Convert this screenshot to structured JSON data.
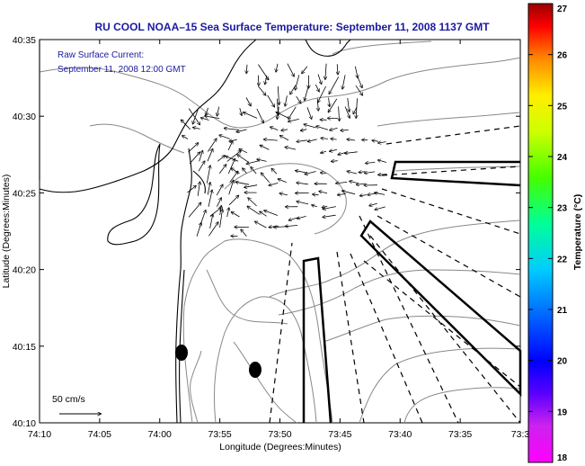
{
  "title": "RU COOL  NOAA–15  Sea Surface Temperature:  September 11, 2008 1137 GMT",
  "annotation": {
    "line1": "Raw Surface Current:",
    "line2": "September 11, 2008 12:00 GMT"
  },
  "scale_label": "50 cm/s",
  "axes": {
    "xlabel": "Longitude (Degrees:Minutes)",
    "ylabel": "Latitude (Degrees:Minutes)",
    "xticks": [
      "74:10",
      "74:05",
      "74:00",
      "73:55",
      "73:50",
      "73:45",
      "73:40",
      "73:35",
      "73:3"
    ],
    "yticks": [
      "40:35",
      "40:30",
      "40:25",
      "40:20",
      "40:15",
      "40:10"
    ]
  },
  "colorbar": {
    "label": "Temperature (°C)",
    "ticks": [
      "27",
      "26",
      "25",
      "24",
      "23",
      "22",
      "21",
      "20",
      "19",
      "18"
    ],
    "min": 18,
    "max": 27
  },
  "colors": {
    "title": "#1a1aa0",
    "annotation": "#1a1aa0",
    "coast": "#000000",
    "bathymetry": "#888888"
  }
}
